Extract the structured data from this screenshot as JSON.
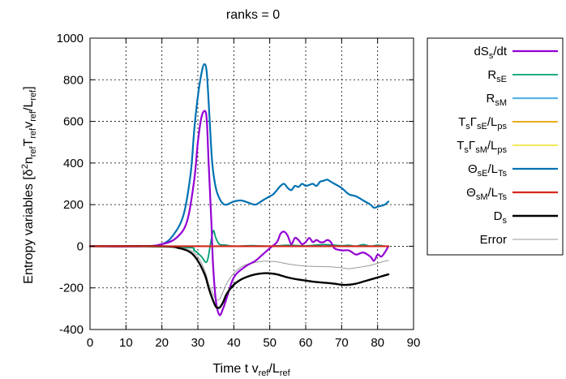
{
  "chart_data": {
    "type": "line",
    "title": "ranks = 0",
    "xlabel": {
      "main": "Time t v",
      "sub1": "ref",
      "mid": "/L",
      "sub2": "ref"
    },
    "ylabel": {
      "pre": "Entropy variables [δ",
      "sup": "2",
      "p1": "n",
      "s1": "ref",
      "p2": "T",
      "s2": "ref",
      "p3": "v",
      "s3": "ref",
      "p4": "/L",
      "s4": "ref",
      "post": "]"
    },
    "xlim": [
      0,
      90
    ],
    "ylim": [
      -400,
      1000
    ],
    "xticks": [
      0,
      10,
      20,
      30,
      40,
      50,
      60,
      70,
      80,
      90
    ],
    "yticks": [
      -400,
      -200,
      0,
      200,
      400,
      600,
      800,
      1000
    ],
    "grid": true,
    "legend_position": "outside-right",
    "series": [
      {
        "key": "dSsdt",
        "name": "dSs/dt",
        "legend": [
          {
            "t": "dS",
            "s": "base"
          },
          {
            "t": "s",
            "s": "sub"
          },
          {
            "t": "/dt",
            "s": "base"
          }
        ],
        "color": "#9400d3",
        "width": 2.2,
        "x": [
          0,
          15,
          20,
          24,
          27,
          29,
          30,
          31,
          32,
          32.5,
          33,
          33.8,
          34.2,
          35,
          36,
          37,
          38,
          40,
          43,
          46,
          48,
          50,
          52,
          53,
          54,
          55,
          56,
          57,
          58,
          59,
          60,
          61,
          62,
          63,
          64,
          65,
          66,
          67,
          68,
          70,
          72,
          74,
          76,
          78,
          79,
          80,
          81,
          82,
          83
        ],
        "y": [
          0,
          0,
          10,
          40,
          120,
          320,
          500,
          620,
          650,
          600,
          400,
          100,
          -80,
          -260,
          -330,
          -300,
          -250,
          -150,
          -100,
          -70,
          -40,
          -10,
          20,
          60,
          70,
          50,
          10,
          40,
          30,
          10,
          20,
          40,
          20,
          30,
          20,
          20,
          30,
          20,
          -10,
          -20,
          -20,
          -40,
          -30,
          -50,
          -70,
          -40,
          -50,
          -30,
          0
        ]
      },
      {
        "key": "RsE",
        "name": "RsE",
        "legend": [
          {
            "t": "R",
            "s": "base"
          },
          {
            "t": "sE",
            "s": "sub"
          }
        ],
        "color": "#009e73",
        "width": 1.8,
        "x": [
          0,
          26,
          29,
          31,
          32.5,
          33.5,
          34.3,
          35,
          36,
          38,
          40,
          45,
          50,
          55,
          60,
          65,
          70,
          72,
          74,
          76,
          78,
          80,
          82,
          83
        ],
        "y": [
          0,
          -5,
          -20,
          -50,
          -75,
          10,
          75,
          40,
          10,
          5,
          0,
          3,
          0,
          5,
          2,
          8,
          3,
          5,
          0,
          8,
          0,
          5,
          0,
          0
        ]
      },
      {
        "key": "RsM",
        "name": "RsM",
        "legend": [
          {
            "t": "R",
            "s": "base"
          },
          {
            "t": "sM",
            "s": "sub"
          }
        ],
        "color": "#56b4e9",
        "width": 2.2,
        "x": [
          0,
          83
        ],
        "y": [
          0,
          0
        ]
      },
      {
        "key": "TsGsE",
        "name": "TsΓsE/Lps",
        "legend": [
          {
            "t": "T",
            "s": "base"
          },
          {
            "t": "s",
            "s": "sub"
          },
          {
            "t": "Γ",
            "s": "base"
          },
          {
            "t": "sE",
            "s": "sub"
          },
          {
            "t": "/L",
            "s": "base"
          },
          {
            "t": "ps",
            "s": "sub"
          }
        ],
        "color": "#e69f00",
        "width": 1.8,
        "x": [
          0,
          83
        ],
        "y": [
          0,
          0
        ]
      },
      {
        "key": "TsGsM",
        "name": "TsΓsM/Lps",
        "legend": [
          {
            "t": "T",
            "s": "base"
          },
          {
            "t": "s",
            "s": "sub"
          },
          {
            "t": "Γ",
            "s": "base"
          },
          {
            "t": "sM",
            "s": "sub"
          },
          {
            "t": "/L",
            "s": "base"
          },
          {
            "t": "ps",
            "s": "sub"
          }
        ],
        "color": "#f0e442",
        "width": 1.8,
        "x": [
          0,
          83
        ],
        "y": [
          0,
          0
        ]
      },
      {
        "key": "ThetasE",
        "name": "ΘsE/LTs",
        "legend": [
          {
            "t": "Θ",
            "s": "base"
          },
          {
            "t": "sE",
            "s": "sub"
          },
          {
            "t": "/L",
            "s": "base"
          },
          {
            "t": "Ts",
            "s": "sub"
          }
        ],
        "color": "#0072b2",
        "width": 2.2,
        "x": [
          0,
          15,
          20,
          23,
          26,
          28,
          29,
          30,
          31,
          31.8,
          32.5,
          33.3,
          34,
          35,
          36,
          37,
          38,
          40,
          42,
          44,
          46,
          48,
          50,
          51,
          52,
          53,
          54,
          55,
          56,
          57,
          58,
          59,
          60,
          61,
          62,
          63,
          64,
          65,
          66,
          67,
          68,
          70,
          72,
          74,
          76,
          78,
          79,
          80,
          82,
          83
        ],
        "y": [
          0,
          0,
          10,
          50,
          150,
          350,
          560,
          720,
          830,
          875,
          830,
          600,
          400,
          280,
          230,
          205,
          200,
          215,
          220,
          210,
          200,
          220,
          240,
          250,
          270,
          290,
          300,
          280,
          270,
          290,
          285,
          300,
          290,
          295,
          300,
          290,
          310,
          315,
          320,
          310,
          300,
          280,
          250,
          240,
          220,
          200,
          185,
          190,
          200,
          215
        ]
      },
      {
        "key": "ThetasM",
        "name": "ΘsM/LTs",
        "legend": [
          {
            "t": "Θ",
            "s": "base"
          },
          {
            "t": "sM",
            "s": "sub"
          },
          {
            "t": "/L",
            "s": "base"
          },
          {
            "t": "Ts",
            "s": "sub"
          }
        ],
        "color": "#d7261e",
        "width": 2.2,
        "x": [
          0,
          83
        ],
        "y": [
          0,
          0
        ]
      },
      {
        "key": "Ds",
        "name": "Ds",
        "legend": [
          {
            "t": "D",
            "s": "base"
          },
          {
            "t": "s",
            "s": "sub"
          }
        ],
        "color": "#000000",
        "width": 2.4,
        "x": [
          0,
          20,
          25,
          28,
          30,
          32,
          33,
          34,
          35,
          36,
          37,
          38,
          40,
          42,
          44,
          46,
          48,
          50,
          52,
          55,
          58,
          60,
          62,
          65,
          68,
          70,
          72,
          74,
          76,
          78,
          80,
          82,
          83
        ],
        "y": [
          0,
          0,
          -10,
          -30,
          -70,
          -140,
          -200,
          -250,
          -290,
          -295,
          -270,
          -230,
          -185,
          -160,
          -145,
          -135,
          -130,
          -130,
          -135,
          -150,
          -160,
          -165,
          -170,
          -175,
          -180,
          -185,
          -185,
          -180,
          -170,
          -160,
          -150,
          -140,
          -135
        ]
      },
      {
        "key": "Error",
        "name": "Error",
        "legend": [
          {
            "t": "Error",
            "s": "base"
          }
        ],
        "color": "#999999",
        "width": 1.0,
        "x": [
          0,
          20,
          25,
          28,
          30,
          32,
          33,
          34,
          35,
          36,
          37,
          38,
          40,
          42,
          44,
          46,
          48,
          50,
          52,
          55,
          58,
          60,
          62,
          65,
          68,
          70,
          72,
          74,
          76,
          78,
          80,
          82,
          83
        ],
        "y": [
          0,
          0,
          -5,
          -20,
          -50,
          -120,
          -180,
          -220,
          -255,
          -255,
          -220,
          -180,
          -130,
          -100,
          -85,
          -78,
          -72,
          -72,
          -75,
          -85,
          -92,
          -95,
          -97,
          -98,
          -100,
          -103,
          -108,
          -103,
          -98,
          -92,
          -82,
          -72,
          -68
        ]
      }
    ]
  }
}
